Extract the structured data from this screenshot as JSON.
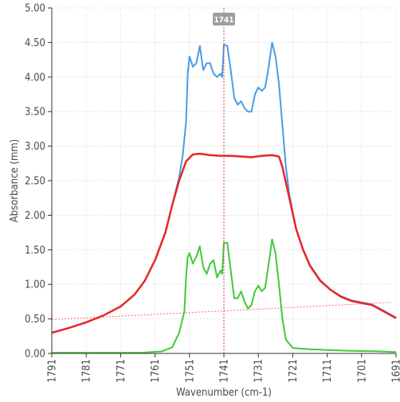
{
  "chart_data": {
    "type": "line",
    "xlabel": "Wavenumber (cm-1)",
    "ylabel": "Absorbance (mm)",
    "xlim": [
      1791,
      1691
    ],
    "ylim": [
      0,
      5
    ],
    "x_reversed": true,
    "grid": true,
    "x_ticks": [
      "1791",
      "1781",
      "1771",
      "1761",
      "1751",
      "1741",
      "1731",
      "1721",
      "1711",
      "1701",
      "1691"
    ],
    "y_ticks": [
      "0.00",
      "0.50",
      "1.00",
      "1.50",
      "2.00",
      "2.50",
      "3.00",
      "3.50",
      "4.00",
      "4.50",
      "5.00"
    ],
    "cursor": {
      "x": 1741,
      "label": "1741"
    },
    "baseline": {
      "from": [
        1791,
        0.49
      ],
      "to": [
        1692,
        0.74
      ],
      "color": "#ff6b6b"
    },
    "series": [
      {
        "color": "#4a9be6",
        "points": [
          [
            1791,
            0.3
          ],
          [
            1786,
            0.37
          ],
          [
            1781,
            0.45
          ],
          [
            1776,
            0.55
          ],
          [
            1771,
            0.68
          ],
          [
            1767,
            0.85
          ],
          [
            1764,
            1.05
          ],
          [
            1761,
            1.35
          ],
          [
            1758,
            1.75
          ],
          [
            1756,
            2.15
          ],
          [
            1754,
            2.55
          ],
          [
            1753,
            2.85
          ],
          [
            1752,
            3.35
          ],
          [
            1751.5,
            4.05
          ],
          [
            1751,
            4.3
          ],
          [
            1750,
            4.15
          ],
          [
            1749,
            4.2
          ],
          [
            1748,
            4.45
          ],
          [
            1747,
            4.1
          ],
          [
            1746,
            4.2
          ],
          [
            1745,
            4.2
          ],
          [
            1744,
            4.05
          ],
          [
            1743,
            4.0
          ],
          [
            1742,
            4.05
          ],
          [
            1741.5,
            4.0
          ],
          [
            1741,
            4.47
          ],
          [
            1740,
            4.45
          ],
          [
            1739,
            4.1
          ],
          [
            1738,
            3.7
          ],
          [
            1737,
            3.6
          ],
          [
            1736,
            3.65
          ],
          [
            1735,
            3.55
          ],
          [
            1734,
            3.5
          ],
          [
            1733,
            3.5
          ],
          [
            1732,
            3.75
          ],
          [
            1731,
            3.85
          ],
          [
            1730,
            3.8
          ],
          [
            1729,
            3.85
          ],
          [
            1728,
            4.15
          ],
          [
            1727,
            4.5
          ],
          [
            1726,
            4.3
          ],
          [
            1725,
            3.9
          ],
          [
            1724,
            3.3
          ],
          [
            1723,
            2.7
          ],
          [
            1722,
            2.3
          ],
          [
            1720,
            1.8
          ],
          [
            1718,
            1.5
          ],
          [
            1716,
            1.28
          ],
          [
            1713,
            1.06
          ],
          [
            1710,
            0.92
          ],
          [
            1707,
            0.83
          ],
          [
            1704,
            0.77
          ],
          [
            1701,
            0.74
          ],
          [
            1698,
            0.71
          ],
          [
            1695,
            0.63
          ],
          [
            1691,
            0.52
          ]
        ]
      },
      {
        "color": "#e8262a",
        "points": [
          [
            1791,
            0.3
          ],
          [
            1786,
            0.37
          ],
          [
            1781,
            0.45
          ],
          [
            1776,
            0.55
          ],
          [
            1771,
            0.68
          ],
          [
            1767,
            0.85
          ],
          [
            1764,
            1.05
          ],
          [
            1761,
            1.35
          ],
          [
            1758,
            1.75
          ],
          [
            1756,
            2.15
          ],
          [
            1754,
            2.5
          ],
          [
            1752,
            2.78
          ],
          [
            1750,
            2.88
          ],
          [
            1748,
            2.89
          ],
          [
            1745,
            2.87
          ],
          [
            1742,
            2.86
          ],
          [
            1739,
            2.86
          ],
          [
            1736,
            2.85
          ],
          [
            1733,
            2.84
          ],
          [
            1730,
            2.86
          ],
          [
            1727,
            2.87
          ],
          [
            1725,
            2.85
          ],
          [
            1724,
            2.7
          ],
          [
            1722,
            2.25
          ],
          [
            1720,
            1.8
          ],
          [
            1718,
            1.5
          ],
          [
            1716,
            1.27
          ],
          [
            1713,
            1.05
          ],
          [
            1710,
            0.92
          ],
          [
            1707,
            0.82
          ],
          [
            1704,
            0.76
          ],
          [
            1701,
            0.73
          ],
          [
            1698,
            0.7
          ],
          [
            1695,
            0.62
          ],
          [
            1691,
            0.51
          ]
        ]
      },
      {
        "color": "#3fca3a",
        "points": [
          [
            1791,
            0.01
          ],
          [
            1775,
            0.01
          ],
          [
            1765,
            0.01
          ],
          [
            1759,
            0.03
          ],
          [
            1756,
            0.09
          ],
          [
            1754,
            0.3
          ],
          [
            1752.5,
            0.6
          ],
          [
            1752,
            1.1
          ],
          [
            1751.5,
            1.4
          ],
          [
            1751,
            1.45
          ],
          [
            1750,
            1.3
          ],
          [
            1749,
            1.4
          ],
          [
            1748,
            1.55
          ],
          [
            1747,
            1.25
          ],
          [
            1746,
            1.15
          ],
          [
            1745,
            1.3
          ],
          [
            1744,
            1.35
          ],
          [
            1743,
            1.1
          ],
          [
            1742,
            1.2
          ],
          [
            1741.5,
            1.15
          ],
          [
            1741,
            1.6
          ],
          [
            1740,
            1.6
          ],
          [
            1739,
            1.2
          ],
          [
            1738,
            0.8
          ],
          [
            1737,
            0.8
          ],
          [
            1736,
            0.9
          ],
          [
            1735,
            0.75
          ],
          [
            1734,
            0.65
          ],
          [
            1733,
            0.7
          ],
          [
            1732,
            0.9
          ],
          [
            1731,
            0.98
          ],
          [
            1730,
            0.9
          ],
          [
            1729,
            0.95
          ],
          [
            1728,
            1.3
          ],
          [
            1727,
            1.65
          ],
          [
            1726,
            1.45
          ],
          [
            1725,
            1.0
          ],
          [
            1724,
            0.5
          ],
          [
            1723,
            0.2
          ],
          [
            1721,
            0.08
          ],
          [
            1716,
            0.06
          ],
          [
            1706,
            0.04
          ],
          [
            1696,
            0.03
          ],
          [
            1691,
            0.02
          ]
        ]
      }
    ]
  }
}
